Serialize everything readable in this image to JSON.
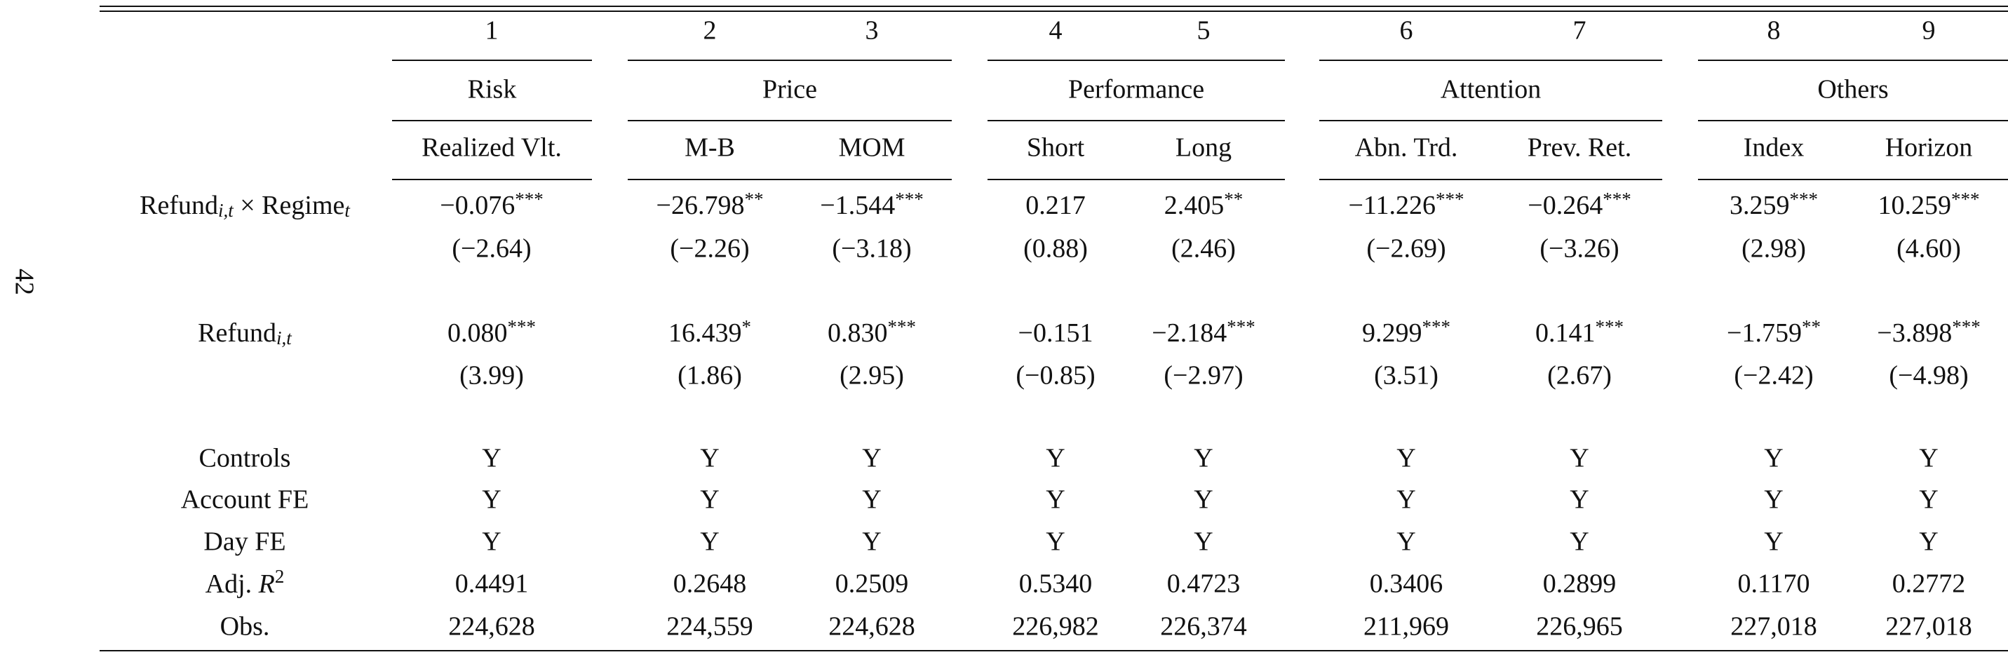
{
  "page_number": "42",
  "table": {
    "column_numbers": [
      "1",
      "2",
      "3",
      "4",
      "5",
      "6",
      "7",
      "8",
      "9"
    ],
    "groups": [
      "Risk",
      "Price",
      "Performance",
      "Attention",
      "Others"
    ],
    "column_labels": [
      "Realized Vlt.",
      "M-B",
      "MOM",
      "Short",
      "Long",
      "Abn. Trd.",
      "Prev. Ret.",
      "Index",
      "Horizon"
    ],
    "coefficient_rows": [
      {
        "label": [
          {
            "text": "Refund",
            "sub": "i,t"
          },
          {
            "text": " × Regime",
            "sub": "t"
          }
        ],
        "estimates": [
          "−0.076",
          "−26.798",
          "−1.544",
          "0.217",
          "2.405",
          "−11.226",
          "−0.264",
          "3.259",
          "10.259"
        ],
        "stars": [
          "***",
          "**",
          "***",
          null,
          "**",
          "***",
          "***",
          "***",
          "***"
        ],
        "t_stats": [
          "(−2.64)",
          "(−2.26)",
          "(−3.18)",
          "(0.88)",
          "(2.46)",
          "(−2.69)",
          "(−3.26)",
          "(2.98)",
          "(4.60)"
        ]
      },
      {
        "label": [
          {
            "text": "Refund",
            "sub": "i,t"
          }
        ],
        "estimates": [
          "0.080",
          "16.439",
          "0.830",
          "−0.151",
          "−2.184",
          "9.299",
          "0.141",
          "−1.759",
          "−3.898"
        ],
        "stars": [
          "***",
          "*",
          "***",
          null,
          "***",
          "***",
          "***",
          "**",
          "***"
        ],
        "t_stats": [
          "(3.99)",
          "(1.86)",
          "(2.95)",
          "(−0.85)",
          "(−2.97)",
          "(3.51)",
          "(2.67)",
          "(−2.42)",
          "(−4.98)"
        ]
      }
    ],
    "fixed_rows": [
      {
        "label": "Controls",
        "values": [
          "Y",
          "Y",
          "Y",
          "Y",
          "Y",
          "Y",
          "Y",
          "Y",
          "Y"
        ]
      },
      {
        "label": "Account FE",
        "values": [
          "Y",
          "Y",
          "Y",
          "Y",
          "Y",
          "Y",
          "Y",
          "Y",
          "Y"
        ]
      },
      {
        "label": "Day FE",
        "values": [
          "Y",
          "Y",
          "Y",
          "Y",
          "Y",
          "Y",
          "Y",
          "Y",
          "Y"
        ]
      }
    ],
    "adj_r2": {
      "text": "Adj. ",
      "italic": "R",
      "sup": "2",
      "values": [
        "0.4491",
        "0.2648",
        "0.2509",
        "0.5340",
        "0.4723",
        "0.3406",
        "0.2899",
        "0.1170",
        "0.2772"
      ]
    },
    "obs": {
      "label": "Obs.",
      "values": [
        "224,628",
        "224,559",
        "224,628",
        "226,982",
        "226,374",
        "211,969",
        "226,965",
        "227,018",
        "227,018"
      ]
    }
  }
}
